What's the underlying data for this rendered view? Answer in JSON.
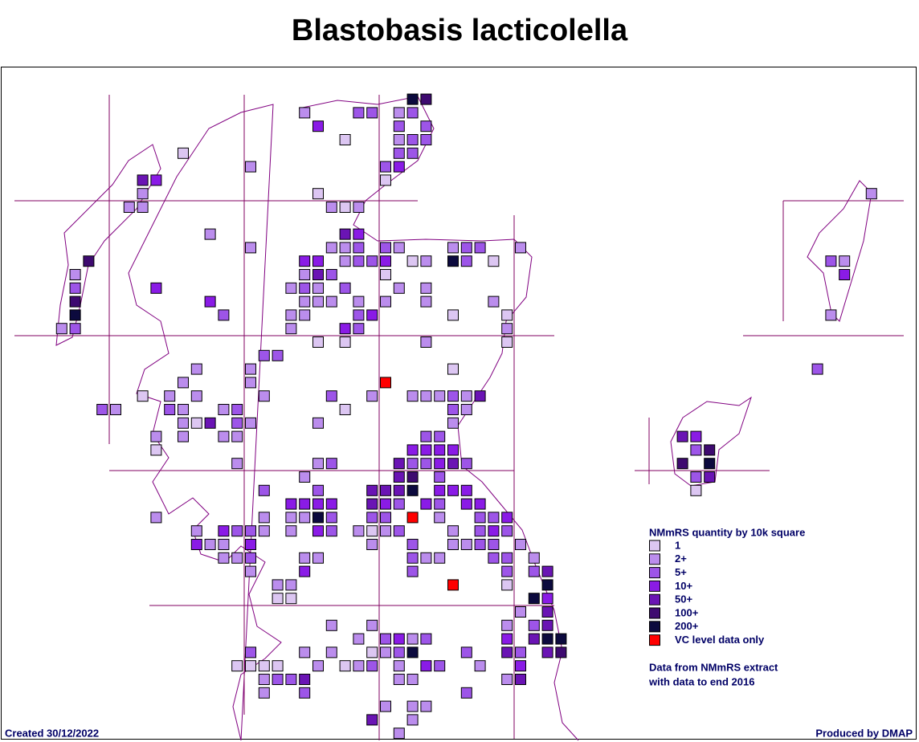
{
  "header": {
    "title": "Blastobasis lacticolella"
  },
  "legend": {
    "title": "NMmRS quantity by 10k square",
    "items": [
      {
        "label": "1",
        "color": "#dcc6f2"
      },
      {
        "label": "2+",
        "color": "#bb8ded"
      },
      {
        "label": "5+",
        "color": "#9d55e8"
      },
      {
        "label": "10+",
        "color": "#8a1be6"
      },
      {
        "label": "50+",
        "color": "#6a14b4"
      },
      {
        "label": "100+",
        "color": "#3e0a70"
      },
      {
        "label": "200+",
        "color": "#0c0a3e"
      },
      {
        "label": "VC level data only",
        "color": "#ff0000"
      }
    ]
  },
  "note": [
    "Data from NMmRS extract",
    "with data to end 2016"
  ],
  "footer": {
    "created": "Created 30/12/2022",
    "produced": "Produced by DMAP"
  },
  "squares": [
    [
      30,
      0,
      6
    ],
    [
      31,
      0,
      5
    ],
    [
      22,
      1,
      1
    ],
    [
      26,
      1,
      2
    ],
    [
      27,
      1,
      2
    ],
    [
      29,
      1,
      1
    ],
    [
      30,
      1,
      2
    ],
    [
      23,
      2,
      3
    ],
    [
      29,
      2,
      2
    ],
    [
      31,
      2,
      2
    ],
    [
      25,
      3,
      0
    ],
    [
      29,
      3,
      1
    ],
    [
      30,
      3,
      2
    ],
    [
      31,
      3,
      2
    ],
    [
      13,
      4,
      0
    ],
    [
      29,
      4,
      2
    ],
    [
      30,
      4,
      2
    ],
    [
      18,
      5,
      1
    ],
    [
      28,
      5,
      2
    ],
    [
      29,
      5,
      3
    ],
    [
      10,
      6,
      4
    ],
    [
      11,
      6,
      3
    ],
    [
      28,
      6,
      0
    ],
    [
      10,
      7,
      1
    ],
    [
      23,
      7,
      0
    ],
    [
      9,
      8,
      1
    ],
    [
      10,
      8,
      1
    ],
    [
      24,
      8,
      1
    ],
    [
      25,
      8,
      0
    ],
    [
      26,
      8,
      1
    ],
    [
      15,
      10,
      1
    ],
    [
      25,
      10,
      4
    ],
    [
      26,
      10,
      3
    ],
    [
      18,
      11,
      1
    ],
    [
      24,
      11,
      1
    ],
    [
      25,
      11,
      1
    ],
    [
      26,
      11,
      2
    ],
    [
      28,
      11,
      2
    ],
    [
      29,
      11,
      1
    ],
    [
      33,
      11,
      1
    ],
    [
      34,
      11,
      2
    ],
    [
      35,
      11,
      2
    ],
    [
      38,
      11,
      1
    ],
    [
      6,
      12,
      5
    ],
    [
      22,
      12,
      3
    ],
    [
      23,
      12,
      3
    ],
    [
      25,
      12,
      1
    ],
    [
      26,
      12,
      2
    ],
    [
      27,
      12,
      2
    ],
    [
      28,
      12,
      3
    ],
    [
      30,
      12,
      0
    ],
    [
      31,
      12,
      1
    ],
    [
      33,
      12,
      6
    ],
    [
      34,
      12,
      2
    ],
    [
      36,
      12,
      0
    ],
    [
      5,
      13,
      1
    ],
    [
      22,
      13,
      1
    ],
    [
      23,
      13,
      4
    ],
    [
      24,
      13,
      2
    ],
    [
      28,
      13,
      0
    ],
    [
      5,
      14,
      2
    ],
    [
      11,
      14,
      3
    ],
    [
      21,
      14,
      1
    ],
    [
      22,
      14,
      2
    ],
    [
      23,
      14,
      1
    ],
    [
      25,
      14,
      2
    ],
    [
      29,
      14,
      1
    ],
    [
      31,
      14,
      1
    ],
    [
      5,
      15,
      5
    ],
    [
      15,
      15,
      3
    ],
    [
      22,
      15,
      1
    ],
    [
      23,
      15,
      1
    ],
    [
      24,
      15,
      1
    ],
    [
      26,
      15,
      1
    ],
    [
      28,
      15,
      1
    ],
    [
      31,
      15,
      1
    ],
    [
      36,
      15,
      1
    ],
    [
      5,
      16,
      6
    ],
    [
      16,
      16,
      2
    ],
    [
      21,
      16,
      1
    ],
    [
      22,
      16,
      1
    ],
    [
      26,
      16,
      2
    ],
    [
      27,
      16,
      3
    ],
    [
      33,
      16,
      0
    ],
    [
      37,
      16,
      0
    ],
    [
      4,
      17,
      1
    ],
    [
      5,
      17,
      2
    ],
    [
      21,
      17,
      1
    ],
    [
      25,
      17,
      3
    ],
    [
      26,
      17,
      2
    ],
    [
      37,
      17,
      1
    ],
    [
      23,
      18,
      0
    ],
    [
      25,
      18,
      0
    ],
    [
      31,
      18,
      1
    ],
    [
      37,
      18,
      0
    ],
    [
      19,
      19,
      2
    ],
    [
      20,
      19,
      2
    ],
    [
      14,
      20,
      1
    ],
    [
      18,
      20,
      1
    ],
    [
      33,
      20,
      0
    ],
    [
      13,
      21,
      1
    ],
    [
      18,
      21,
      1
    ],
    [
      28,
      21,
      7
    ],
    [
      10,
      22,
      0
    ],
    [
      12,
      22,
      1
    ],
    [
      14,
      22,
      1
    ],
    [
      19,
      22,
      1
    ],
    [
      24,
      22,
      2
    ],
    [
      27,
      22,
      1
    ],
    [
      30,
      22,
      1
    ],
    [
      31,
      22,
      1
    ],
    [
      32,
      22,
      1
    ],
    [
      33,
      22,
      2
    ],
    [
      34,
      22,
      1
    ],
    [
      35,
      22,
      4
    ],
    [
      7,
      23,
      2
    ],
    [
      8,
      23,
      1
    ],
    [
      12,
      23,
      2
    ],
    [
      13,
      23,
      1
    ],
    [
      16,
      23,
      1
    ],
    [
      17,
      23,
      2
    ],
    [
      25,
      23,
      0
    ],
    [
      33,
      23,
      2
    ],
    [
      34,
      23,
      1
    ],
    [
      13,
      24,
      1
    ],
    [
      14,
      24,
      0
    ],
    [
      15,
      24,
      4
    ],
    [
      17,
      24,
      2
    ],
    [
      18,
      24,
      1
    ],
    [
      23,
      24,
      1
    ],
    [
      33,
      24,
      1
    ],
    [
      11,
      25,
      1
    ],
    [
      13,
      25,
      1
    ],
    [
      16,
      25,
      1
    ],
    [
      17,
      25,
      1
    ],
    [
      31,
      25,
      2
    ],
    [
      32,
      25,
      2
    ],
    [
      50,
      25,
      4
    ],
    [
      51,
      25,
      3
    ],
    [
      11,
      26,
      0
    ],
    [
      30,
      26,
      3
    ],
    [
      31,
      26,
      3
    ],
    [
      32,
      26,
      3
    ],
    [
      33,
      26,
      3
    ],
    [
      51,
      26,
      2
    ],
    [
      52,
      26,
      5
    ],
    [
      17,
      27,
      1
    ],
    [
      23,
      27,
      1
    ],
    [
      24,
      27,
      2
    ],
    [
      29,
      27,
      4
    ],
    [
      30,
      27,
      2
    ],
    [
      31,
      27,
      2
    ],
    [
      32,
      27,
      3
    ],
    [
      33,
      27,
      4
    ],
    [
      34,
      27,
      2
    ],
    [
      50,
      27,
      5
    ],
    [
      52,
      27,
      6
    ],
    [
      22,
      28,
      1
    ],
    [
      29,
      28,
      4
    ],
    [
      30,
      28,
      5
    ],
    [
      32,
      28,
      2
    ],
    [
      51,
      28,
      2
    ],
    [
      52,
      28,
      4
    ],
    [
      19,
      29,
      2
    ],
    [
      23,
      29,
      2
    ],
    [
      27,
      29,
      4
    ],
    [
      28,
      29,
      4
    ],
    [
      29,
      29,
      4
    ],
    [
      30,
      29,
      6
    ],
    [
      32,
      29,
      3
    ],
    [
      33,
      29,
      3
    ],
    [
      34,
      29,
      3
    ],
    [
      51,
      29,
      0
    ],
    [
      21,
      30,
      3
    ],
    [
      22,
      30,
      3
    ],
    [
      23,
      30,
      3
    ],
    [
      24,
      30,
      3
    ],
    [
      27,
      30,
      4
    ],
    [
      28,
      30,
      3
    ],
    [
      29,
      30,
      2
    ],
    [
      31,
      30,
      3
    ],
    [
      32,
      30,
      2
    ],
    [
      34,
      30,
      3
    ],
    [
      35,
      30,
      3
    ],
    [
      11,
      31,
      1
    ],
    [
      19,
      31,
      1
    ],
    [
      21,
      31,
      1
    ],
    [
      22,
      31,
      1
    ],
    [
      23,
      31,
      6
    ],
    [
      24,
      31,
      2
    ],
    [
      27,
      31,
      2
    ],
    [
      28,
      31,
      2
    ],
    [
      30,
      31,
      7
    ],
    [
      32,
      31,
      1
    ],
    [
      35,
      31,
      2
    ],
    [
      36,
      31,
      2
    ],
    [
      37,
      31,
      3
    ],
    [
      14,
      32,
      1
    ],
    [
      16,
      32,
      3
    ],
    [
      17,
      32,
      2
    ],
    [
      18,
      32,
      2
    ],
    [
      19,
      32,
      1
    ],
    [
      21,
      32,
      1
    ],
    [
      23,
      32,
      3
    ],
    [
      24,
      32,
      2
    ],
    [
      26,
      32,
      1
    ],
    [
      27,
      32,
      0
    ],
    [
      28,
      32,
      1
    ],
    [
      29,
      32,
      2
    ],
    [
      33,
      32,
      1
    ],
    [
      35,
      32,
      2
    ],
    [
      36,
      32,
      3
    ],
    [
      37,
      32,
      2
    ],
    [
      14,
      33,
      3
    ],
    [
      15,
      33,
      1
    ],
    [
      16,
      33,
      1
    ],
    [
      18,
      33,
      3
    ],
    [
      27,
      33,
      1
    ],
    [
      30,
      33,
      2
    ],
    [
      33,
      33,
      1
    ],
    [
      34,
      33,
      1
    ],
    [
      35,
      33,
      2
    ],
    [
      36,
      33,
      2
    ],
    [
      38,
      33,
      1
    ],
    [
      16,
      34,
      1
    ],
    [
      17,
      34,
      1
    ],
    [
      18,
      34,
      2
    ],
    [
      22,
      34,
      1
    ],
    [
      23,
      34,
      1
    ],
    [
      30,
      34,
      2
    ],
    [
      31,
      34,
      1
    ],
    [
      32,
      34,
      1
    ],
    [
      36,
      34,
      2
    ],
    [
      37,
      34,
      2
    ],
    [
      39,
      34,
      1
    ],
    [
      18,
      35,
      1
    ],
    [
      22,
      35,
      3
    ],
    [
      30,
      35,
      2
    ],
    [
      37,
      35,
      2
    ],
    [
      39,
      35,
      2
    ],
    [
      40,
      35,
      4
    ],
    [
      20,
      36,
      1
    ],
    [
      21,
      36,
      1
    ],
    [
      33,
      36,
      7
    ],
    [
      37,
      36,
      0
    ],
    [
      40,
      36,
      6
    ],
    [
      20,
      37,
      0
    ],
    [
      21,
      37,
      0
    ],
    [
      39,
      37,
      6
    ],
    [
      40,
      37,
      3
    ],
    [
      38,
      38,
      1
    ],
    [
      40,
      38,
      4
    ],
    [
      24,
      39,
      1
    ],
    [
      27,
      39,
      1
    ],
    [
      37,
      39,
      1
    ],
    [
      39,
      39,
      2
    ],
    [
      40,
      39,
      4
    ],
    [
      26,
      40,
      1
    ],
    [
      28,
      40,
      2
    ],
    [
      29,
      40,
      3
    ],
    [
      30,
      40,
      1
    ],
    [
      31,
      40,
      2
    ],
    [
      37,
      40,
      3
    ],
    [
      39,
      40,
      4
    ],
    [
      40,
      40,
      6
    ],
    [
      41,
      40,
      6
    ],
    [
      18,
      41,
      2
    ],
    [
      22,
      41,
      1
    ],
    [
      24,
      41,
      1
    ],
    [
      27,
      41,
      0
    ],
    [
      28,
      41,
      1
    ],
    [
      29,
      41,
      2
    ],
    [
      30,
      41,
      6
    ],
    [
      34,
      41,
      2
    ],
    [
      37,
      41,
      4
    ],
    [
      38,
      41,
      2
    ],
    [
      40,
      41,
      4
    ],
    [
      41,
      41,
      5
    ],
    [
      17,
      42,
      0
    ],
    [
      18,
      42,
      0
    ],
    [
      19,
      42,
      0
    ],
    [
      20,
      42,
      0
    ],
    [
      23,
      42,
      1
    ],
    [
      25,
      42,
      0
    ],
    [
      26,
      42,
      1
    ],
    [
      27,
      42,
      2
    ],
    [
      29,
      42,
      1
    ],
    [
      31,
      42,
      3
    ],
    [
      32,
      42,
      2
    ],
    [
      35,
      42,
      1
    ],
    [
      38,
      42,
      3
    ],
    [
      19,
      43,
      1
    ],
    [
      20,
      43,
      2
    ],
    [
      21,
      43,
      2
    ],
    [
      22,
      43,
      4
    ],
    [
      29,
      43,
      1
    ],
    [
      30,
      43,
      1
    ],
    [
      37,
      43,
      1
    ],
    [
      38,
      43,
      4
    ],
    [
      19,
      44,
      1
    ],
    [
      22,
      44,
      2
    ],
    [
      34,
      44,
      2
    ],
    [
      28,
      45,
      1
    ],
    [
      30,
      45,
      1
    ],
    [
      31,
      45,
      1
    ],
    [
      27,
      46,
      4
    ],
    [
      30,
      46,
      1
    ],
    [
      29,
      47,
      1
    ],
    [
      64,
      7,
      1
    ],
    [
      61,
      12,
      2
    ],
    [
      62,
      12,
      1
    ],
    [
      62,
      13,
      3
    ],
    [
      61,
      16,
      1
    ],
    [
      60,
      20,
      2
    ]
  ]
}
